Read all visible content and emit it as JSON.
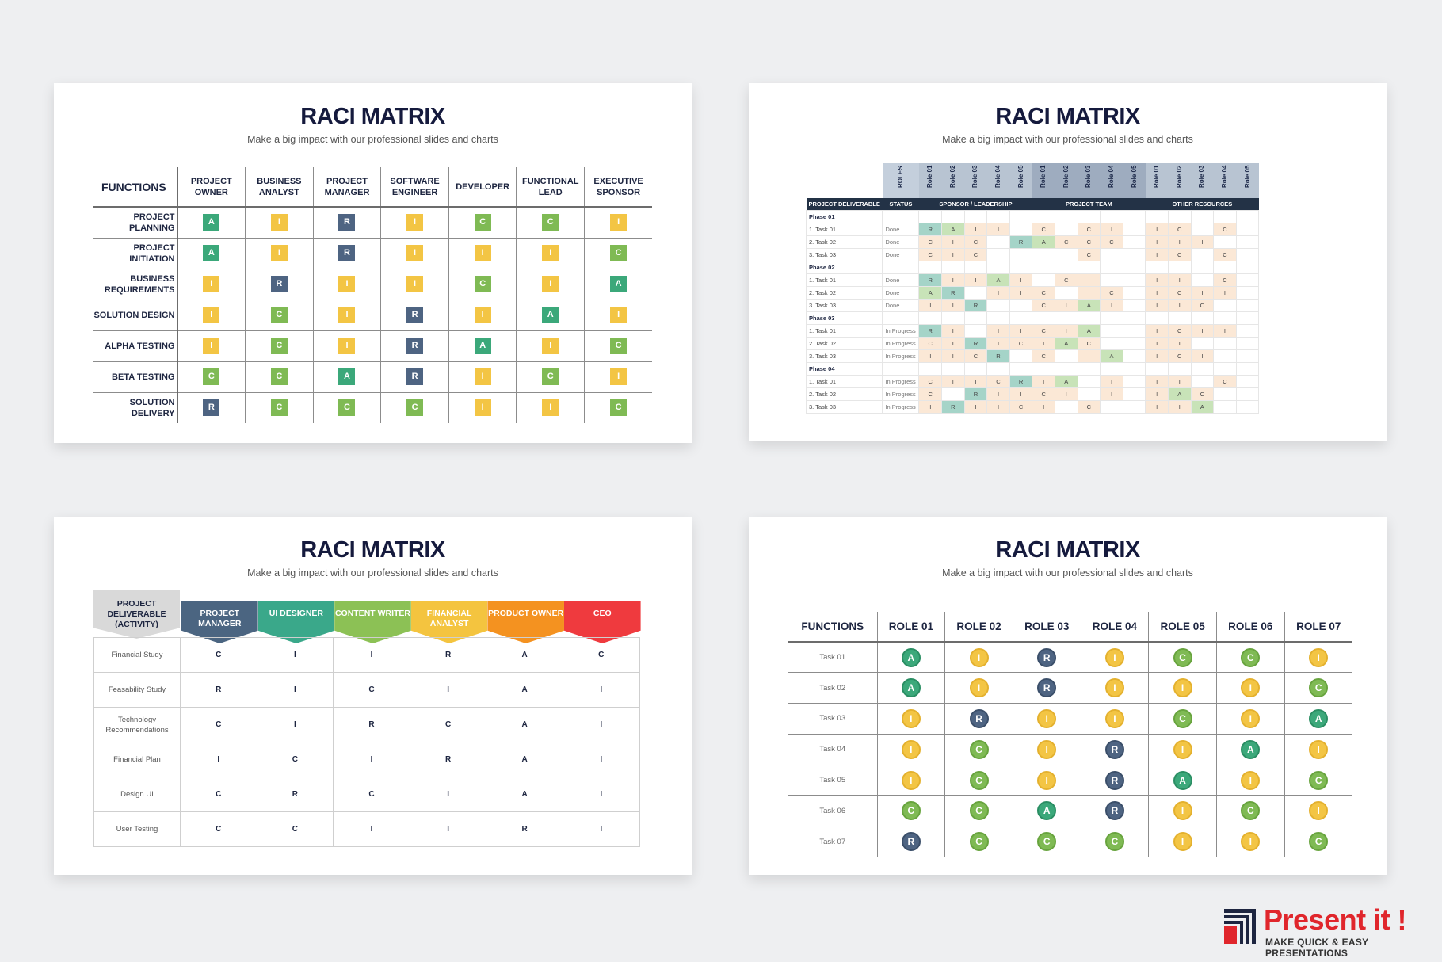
{
  "title": "RACI MATRIX",
  "subtitle": "Make a big impact with our professional slides and charts",
  "colors": {
    "A": "#3ba87a",
    "R": "#4e6482",
    "C": "#7fba54",
    "I": "#f3c544"
  },
  "slide1": {
    "functions_header": "FUNCTIONS",
    "columns": [
      "PROJECT OWNER",
      "BUSINESS ANALYST",
      "PROJECT MANAGER",
      "SOFTWARE ENGINEER",
      "DEVELOPER",
      "FUNCTIONAL LEAD",
      "EXECUTIVE SPONSOR"
    ],
    "rows": [
      {
        "name": "PROJECT PLANNING",
        "cells": [
          "A",
          "I",
          "R",
          "I",
          "C",
          "C",
          "I"
        ]
      },
      {
        "name": "PROJECT INITIATION",
        "cells": [
          "A",
          "I",
          "R",
          "I",
          "I",
          "I",
          "C"
        ]
      },
      {
        "name": "BUSINESS REQUIREMENTS",
        "cells": [
          "I",
          "R",
          "I",
          "I",
          "C",
          "I",
          "A"
        ]
      },
      {
        "name": "SOLUTION DESIGN",
        "cells": [
          "I",
          "C",
          "I",
          "R",
          "I",
          "A",
          "I"
        ]
      },
      {
        "name": "ALPHA TESTING",
        "cells": [
          "I",
          "C",
          "I",
          "R",
          "A",
          "I",
          "C"
        ]
      },
      {
        "name": "BETA TESTING",
        "cells": [
          "C",
          "C",
          "A",
          "R",
          "I",
          "C",
          "I"
        ]
      },
      {
        "name": "SOLUTION DELIVERY",
        "cells": [
          "R",
          "C",
          "C",
          "C",
          "I",
          "I",
          "C"
        ]
      }
    ]
  },
  "slide2": {
    "roles_label": "ROLES",
    "role_labels": [
      "Role 01",
      "Role 02",
      "Role 03",
      "Role 04",
      "Role 05",
      "Role 01",
      "Role 02",
      "Role 03",
      "Role 04",
      "Role 05",
      "Role 01",
      "Role 02",
      "Role 03",
      "Role 04",
      "Role 05"
    ],
    "group_headers": [
      "PROJECT DELIVERABLE",
      "STATUS",
      "SPONSOR / LEADERSHIP",
      "PROJECT TEAM",
      "OTHER RESOURCES"
    ],
    "phases": [
      {
        "name": "Phase 01",
        "tasks": [
          {
            "name": "1. Task 01",
            "status": "Done",
            "cells": [
              "R",
              "A",
              "I",
              "I",
              "",
              "C",
              "",
              "C",
              "I",
              "",
              "I",
              "C",
              "",
              "C",
              ""
            ]
          },
          {
            "name": "2. Task 02",
            "status": "Done",
            "cells": [
              "C",
              "I",
              "C",
              "",
              "R",
              "A",
              "C",
              "C",
              "C",
              "",
              "I",
              "I",
              "I",
              "",
              ""
            ]
          },
          {
            "name": "3. Task 03",
            "status": "Done",
            "cells": [
              "C",
              "I",
              "C",
              "",
              "",
              "",
              "",
              "C",
              "",
              "",
              "I",
              "C",
              "",
              "C",
              ""
            ]
          }
        ]
      },
      {
        "name": "Phase 02",
        "tasks": [
          {
            "name": "1. Task 01",
            "status": "Done",
            "cells": [
              "R",
              "I",
              "I",
              "A",
              "I",
              "",
              "C",
              "I",
              "",
              "",
              "I",
              "I",
              "",
              "C",
              ""
            ]
          },
          {
            "name": "2. Task 02",
            "status": "Done",
            "cells": [
              "A",
              "R",
              "",
              "I",
              "I",
              "C",
              "",
              "I",
              "C",
              "",
              "I",
              "C",
              "I",
              "I",
              ""
            ]
          },
          {
            "name": "3. Task 03",
            "status": "Done",
            "cells": [
              "I",
              "I",
              "R",
              "",
              "",
              "C",
              "I",
              "A",
              "I",
              "",
              "I",
              "I",
              "C",
              "",
              ""
            ]
          }
        ]
      },
      {
        "name": "Phase 03",
        "tasks": [
          {
            "name": "1. Task 01",
            "status": "In Progress",
            "cells": [
              "R",
              "I",
              "",
              "I",
              "I",
              "C",
              "I",
              "A",
              "",
              "",
              "I",
              "C",
              "I",
              "I",
              ""
            ]
          },
          {
            "name": "2. Task 02",
            "status": "In Progress",
            "cells": [
              "C",
              "I",
              "R",
              "I",
              "C",
              "I",
              "A",
              "C",
              "",
              "",
              "I",
              "I",
              "",
              "",
              ""
            ]
          },
          {
            "name": "3. Task 03",
            "status": "In Progress",
            "cells": [
              "I",
              "I",
              "C",
              "R",
              "",
              "C",
              "",
              "I",
              "A",
              "",
              "I",
              "C",
              "I",
              "",
              ""
            ]
          }
        ]
      },
      {
        "name": "Phase 04",
        "tasks": [
          {
            "name": "1. Task 01",
            "status": "In Progress",
            "cells": [
              "C",
              "I",
              "I",
              "C",
              "R",
              "I",
              "A",
              "",
              "I",
              "",
              "I",
              "I",
              "",
              "C",
              ""
            ]
          },
          {
            "name": "2. Task 02",
            "status": "In Progress",
            "cells": [
              "C",
              "",
              "R",
              "I",
              "I",
              "C",
              "I",
              "",
              "I",
              "",
              "I",
              "A",
              "C",
              "",
              ""
            ]
          },
          {
            "name": "3. Task 03",
            "status": "In Progress",
            "cells": [
              "I",
              "R",
              "I",
              "I",
              "C",
              "I",
              "",
              "C",
              "",
              "",
              "I",
              "I",
              "A",
              "",
              ""
            ]
          }
        ]
      }
    ]
  },
  "slide3": {
    "deliverable_header": "PROJECT DELIVERABLE (ACTIVITY)",
    "columns": [
      {
        "label": "PROJECT MANAGER",
        "color": "#4b6581"
      },
      {
        "label": "UI DESIGNER",
        "color": "#3aa88a"
      },
      {
        "label": "CONTENT WRITER",
        "color": "#8cc155"
      },
      {
        "label": "FINANCIAL ANALYST",
        "color": "#f4c43f"
      },
      {
        "label": "PRODUCT OWNER",
        "color": "#f49220"
      },
      {
        "label": "CEO",
        "color": "#ef3a3e"
      }
    ],
    "rows": [
      {
        "name": "Financial Study",
        "cells": [
          "C",
          "I",
          "I",
          "R",
          "A",
          "C"
        ]
      },
      {
        "name": "Feasability Study",
        "cells": [
          "R",
          "I",
          "C",
          "I",
          "A",
          "I"
        ]
      },
      {
        "name": "Technology Recommendations",
        "cells": [
          "C",
          "I",
          "R",
          "C",
          "A",
          "I"
        ]
      },
      {
        "name": "Financial Plan",
        "cells": [
          "I",
          "C",
          "I",
          "R",
          "A",
          "I"
        ]
      },
      {
        "name": "Design UI",
        "cells": [
          "C",
          "R",
          "C",
          "I",
          "A",
          "I"
        ]
      },
      {
        "name": "User Testing",
        "cells": [
          "C",
          "C",
          "I",
          "I",
          "R",
          "I"
        ]
      }
    ]
  },
  "slide4": {
    "functions_header": "FUNCTIONS",
    "columns": [
      "ROLE 01",
      "ROLE 02",
      "ROLE 03",
      "ROLE 04",
      "ROLE 05",
      "ROLE 06",
      "ROLE 07"
    ],
    "rows": [
      {
        "name": "Task 01",
        "cells": [
          "A",
          "I",
          "R",
          "I",
          "C",
          "C",
          "I"
        ]
      },
      {
        "name": "Task 02",
        "cells": [
          "A",
          "I",
          "R",
          "I",
          "I",
          "I",
          "C"
        ]
      },
      {
        "name": "Task 03",
        "cells": [
          "I",
          "R",
          "I",
          "I",
          "C",
          "I",
          "A"
        ]
      },
      {
        "name": "Task 04",
        "cells": [
          "I",
          "C",
          "I",
          "R",
          "I",
          "A",
          "I"
        ]
      },
      {
        "name": "Task 05",
        "cells": [
          "I",
          "C",
          "I",
          "R",
          "A",
          "I",
          "C"
        ]
      },
      {
        "name": "Task 06",
        "cells": [
          "C",
          "C",
          "A",
          "R",
          "I",
          "C",
          "I"
        ]
      },
      {
        "name": "Task 07",
        "cells": [
          "R",
          "C",
          "C",
          "C",
          "I",
          "I",
          "C"
        ]
      }
    ]
  },
  "logo": {
    "brand": "Present it !",
    "tagline": "MAKE QUICK & EASY PRESENTATIONS"
  }
}
